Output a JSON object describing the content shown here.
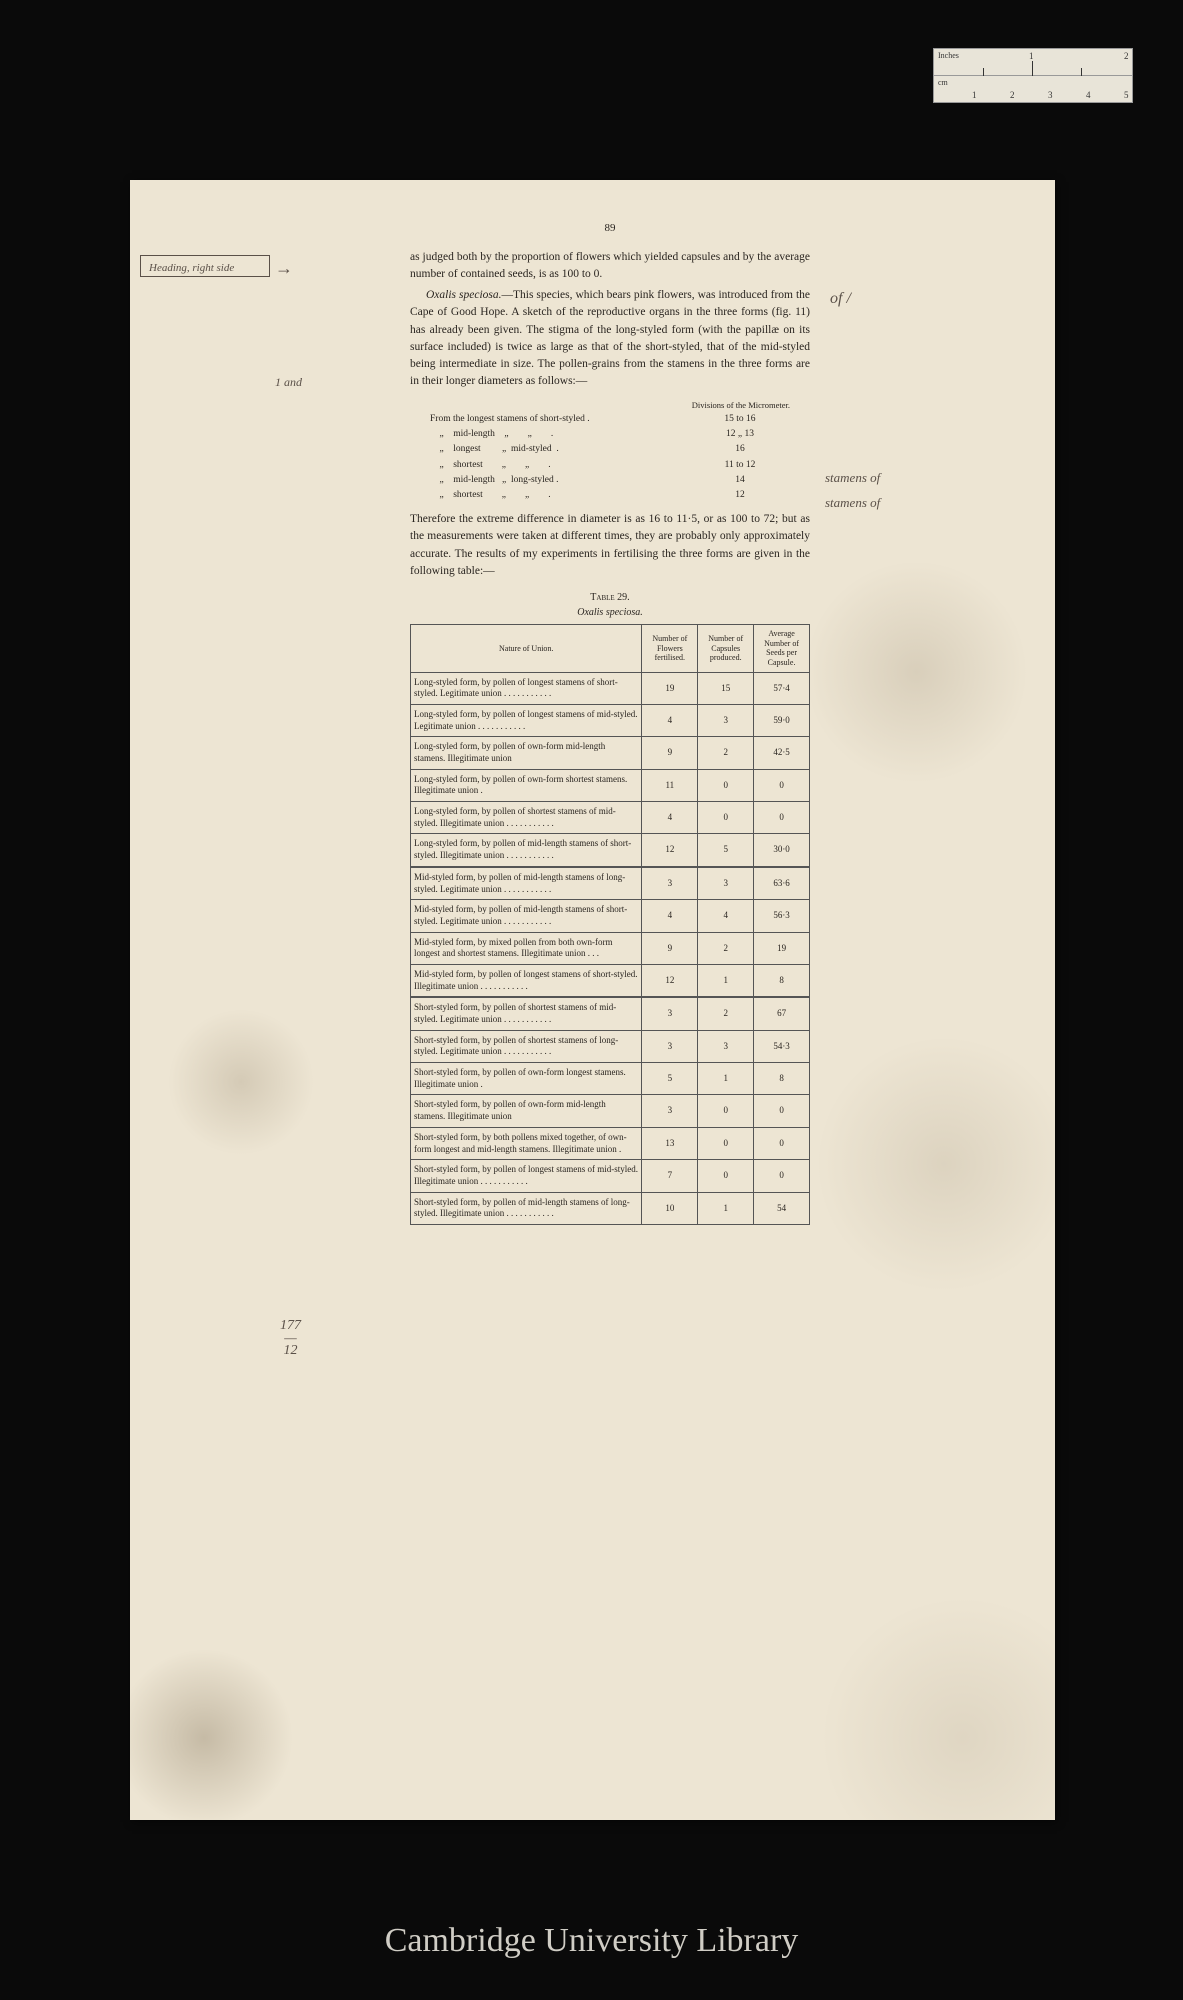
{
  "ruler": {
    "top_unit": "Inches",
    "bottom_unit": "cm",
    "inch_marks": [
      "1",
      "2"
    ],
    "cm_marks": [
      "1",
      "2",
      "3",
      "4",
      "5"
    ]
  },
  "page_number": "89",
  "para1": "as judged both by the proportion of flowers which yielded capsules and by the average number of contained seeds, is as 100 to 0.",
  "para2_lead": "Oxalis speciosa.",
  "para2_body": "—This species, which bears pink flowers, was introduced from the Cape of Good Hope. A sketch of the reproductive organs in the three forms (fig. 11) has already been given. The stigma of the long-styled form (with the papillæ on its surface included) is twice as large as that of the short-styled, that of the mid-styled being intermediate in size. The pollen-grains from the stamens in the three forms are in their longer diameters as follows:—",
  "pollen_header": "Divisions of the Micrometer.",
  "pollen_rows": [
    {
      "label": "From the longest stamens of short-styled .",
      "val": "15 to 16"
    },
    {
      "label": "    „    mid-length    „        „        .",
      "val": "12 „ 13"
    },
    {
      "label": "    „    longest         „  mid-styled  .",
      "val": "16"
    },
    {
      "label": "    „    shortest        „        „        .",
      "val": "11 to 12"
    },
    {
      "label": "    „    mid-length   „  long-styled .",
      "val": "14"
    },
    {
      "label": "    „    shortest        „        „        .",
      "val": "12"
    }
  ],
  "para3": "Therefore the extreme difference in diameter is as 16 to 11·5, or as 100 to 72; but as the measurements were taken at different times, they are probably only approximately accurate. The results of my experiments in fertilising the three forms are given in the following table:—",
  "table_title": "Table 29.",
  "table_subtitle": "Oxalis speciosa.",
  "columns": [
    "Nature of Union.",
    "Number of Flowers fertilised.",
    "Number of Capsules produced.",
    "Average Number of Seeds per Capsule."
  ],
  "rows": [
    {
      "nature": "Long-styled form, by pollen of longest stamens of short-styled. Legitimate union . . . . . . . . . . .",
      "f": "19",
      "c": "15",
      "s": "57·4",
      "break": false
    },
    {
      "nature": "Long-styled form, by pollen of longest stamens of mid-styled. Legitimate union . . . . . . . . . . .",
      "f": "4",
      "c": "3",
      "s": "59·0",
      "break": false
    },
    {
      "nature": "Long-styled form, by pollen of own-form mid-length stamens. Illegitimate union",
      "f": "9",
      "c": "2",
      "s": "42·5",
      "break": false
    },
    {
      "nature": "Long-styled form, by pollen of own-form shortest stamens. Illegitimate union .",
      "f": "11",
      "c": "0",
      "s": "0",
      "break": false
    },
    {
      "nature": "Long-styled form, by pollen of shortest stamens of mid-styled. Illegitimate union . . . . . . . . . . .",
      "f": "4",
      "c": "0",
      "s": "0",
      "break": false
    },
    {
      "nature": "Long-styled form, by pollen of mid-length stamens of short-styled. Illegitimate union . . . . . . . . . . .",
      "f": "12",
      "c": "5",
      "s": "30·0",
      "break": false
    },
    {
      "nature": "Mid-styled form, by pollen of mid-length stamens of long-styled. Legitimate union . . . . . . . . . . .",
      "f": "3",
      "c": "3",
      "s": "63·6",
      "break": true
    },
    {
      "nature": "Mid-styled form, by pollen of mid-length stamens of short-styled. Legitimate union . . . . . . . . . . .",
      "f": "4",
      "c": "4",
      "s": "56·3",
      "break": false
    },
    {
      "nature": "Mid-styled form, by mixed pollen from both own-form longest and shortest stamens. Illegitimate union . . .",
      "f": "9",
      "c": "2",
      "s": "19",
      "break": false
    },
    {
      "nature": "Mid-styled form, by pollen of longest stamens of short-styled. Illegitimate union . . . . . . . . . . .",
      "f": "12",
      "c": "1",
      "s": "8",
      "break": false
    },
    {
      "nature": "Short-styled form, by pollen of shortest stamens of mid-styled. Legitimate union . . . . . . . . . . .",
      "f": "3",
      "c": "2",
      "s": "67",
      "break": true
    },
    {
      "nature": "Short-styled form, by pollen of shortest stamens of long-styled. Legitimate union . . . . . . . . . . .",
      "f": "3",
      "c": "3",
      "s": "54·3",
      "break": false
    },
    {
      "nature": "Short-styled form, by pollen of own-form longest stamens. Illegitimate union .",
      "f": "5",
      "c": "1",
      "s": "8",
      "break": false
    },
    {
      "nature": "Short-styled form, by pollen of own-form mid-length stamens. Illegitimate union",
      "f": "3",
      "c": "0",
      "s": "0",
      "break": false
    },
    {
      "nature": "Short-styled form, by both pollens mixed together, of own-form longest and mid-length stamens. Illegitimate union .",
      "f": "13",
      "c": "0",
      "s": "0",
      "break": false
    },
    {
      "nature": "Short-styled form, by pollen of longest stamens of mid-styled. Illegitimate union . . . . . . . . . . .",
      "f": "7",
      "c": "0",
      "s": "0",
      "break": false
    },
    {
      "nature": "Short-styled form, by pollen of mid-length stamens of long-styled. Illegitimate union . . . . . . . . . . .",
      "f": "10",
      "c": "1",
      "s": "54",
      "break": false
    }
  ],
  "annotations": {
    "heading_note": "Heading, right side",
    "one_and": "1 and",
    "of_slash": "of /",
    "stamens1": "stamens of",
    "stamens2": "stamens of",
    "fraction": "177\n—\n12"
  },
  "footer": "Cambridge University Library",
  "colors": {
    "bg": "#0a0a0a",
    "paper": "#ede5d3",
    "ink": "#2a2520",
    "pencil": "#5a5048",
    "footer_text": "#d0cdc5"
  }
}
